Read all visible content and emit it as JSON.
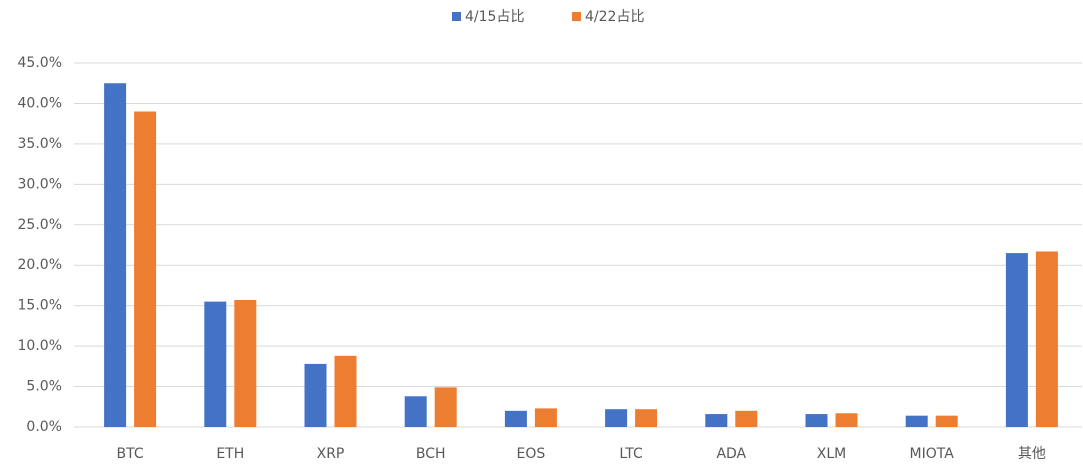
{
  "chart_data": {
    "type": "bar",
    "categories": [
      "BTC",
      "ETH",
      "XRP",
      "BCH",
      "EOS",
      "LTC",
      "ADA",
      "XLM",
      "MIOTA",
      "其他"
    ],
    "series": [
      {
        "name": "4/15占比",
        "color": "#4472c4",
        "values": [
          42.5,
          15.5,
          7.8,
          3.8,
          2.0,
          2.2,
          1.6,
          1.6,
          1.4,
          21.5
        ]
      },
      {
        "name": "4/22占比",
        "color": "#ed7d31",
        "values": [
          39.0,
          15.7,
          8.8,
          4.9,
          2.3,
          2.2,
          2.0,
          1.7,
          1.4,
          21.7
        ]
      }
    ],
    "ylim": [
      0,
      45
    ],
    "yticks": [
      {
        "value": 0,
        "label": "0.0%"
      },
      {
        "value": 5,
        "label": "5.0%"
      },
      {
        "value": 10,
        "label": "10.0%"
      },
      {
        "value": 15,
        "label": "15.0%"
      },
      {
        "value": 20,
        "label": "20.0%"
      },
      {
        "value": 25,
        "label": "25.0%"
      },
      {
        "value": 30,
        "label": "30.0%"
      },
      {
        "value": 35,
        "label": "35.0%"
      },
      {
        "value": 40,
        "label": "40.0%"
      },
      {
        "value": 45,
        "label": "45.0%"
      }
    ],
    "grid": true,
    "legend": "top"
  }
}
